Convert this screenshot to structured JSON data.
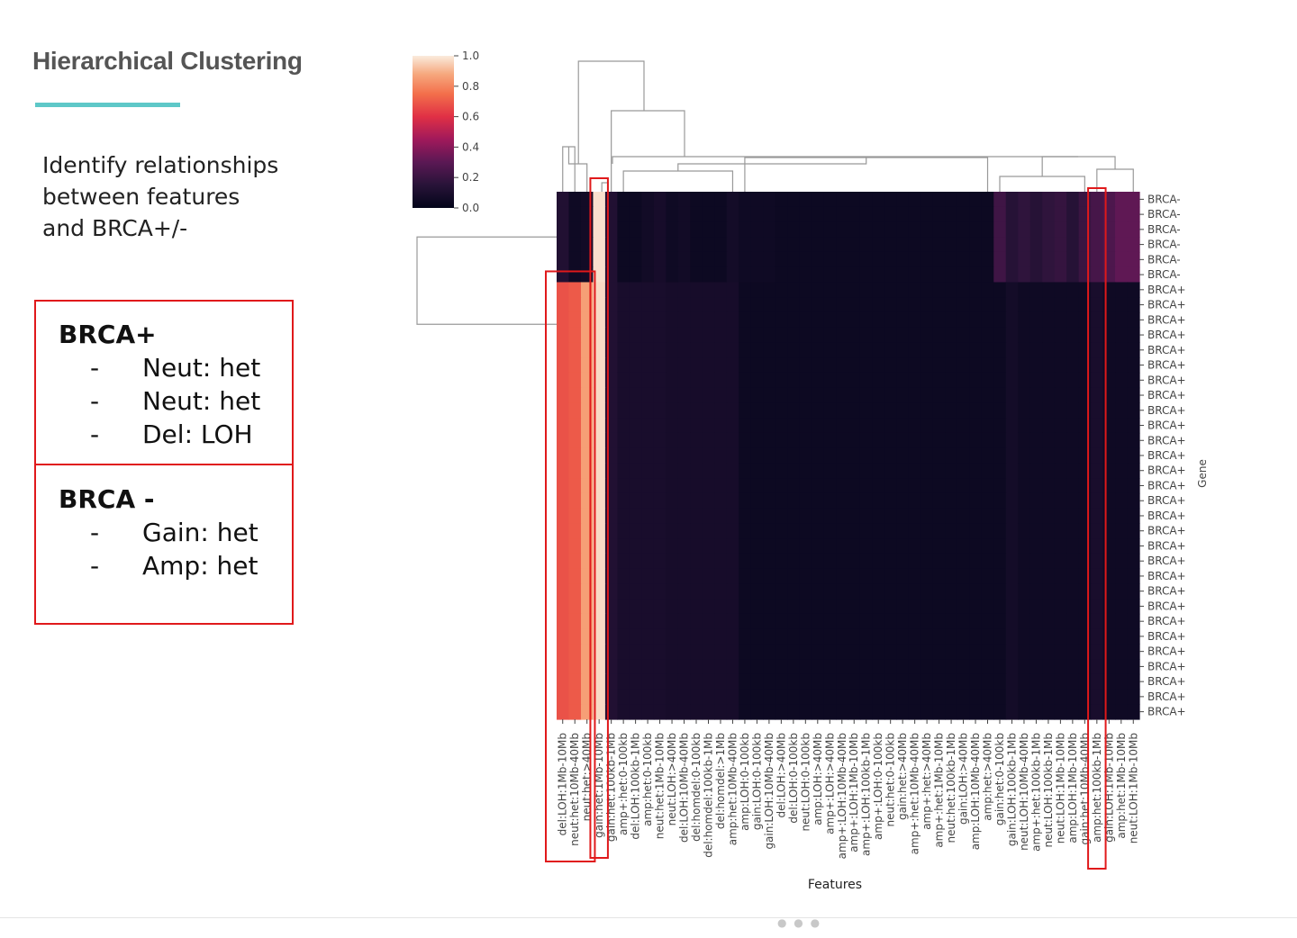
{
  "slide": {
    "title": "Hierarchical Clustering",
    "accent_color": "#5ec8c8",
    "intro_lines": [
      "Identify relationships",
      "between features",
      "and BRCA+/-"
    ]
  },
  "summary_box": {
    "border_color": "#e0191b",
    "groups": [
      {
        "heading": "BRCA+",
        "items": [
          {
            "dash": "-",
            "text": "Neut: het"
          },
          {
            "dash": "-",
            "text": "Neut: het"
          },
          {
            "dash": "-",
            "text": "Del: LOH"
          }
        ]
      },
      {
        "heading": "BRCA -",
        "items": [
          {
            "dash": "-",
            "text": "Gain: het"
          },
          {
            "dash": "-",
            "text": "Amp: het"
          }
        ]
      }
    ]
  },
  "chart_data": {
    "type": "heatmap",
    "xlabel": "Features",
    "ylabel": "Gene",
    "colorbar": {
      "ticks": [
        "1.0",
        "0.8",
        "0.6",
        "0.4",
        "0.2",
        "0.0"
      ],
      "range": [
        0,
        1
      ]
    },
    "x": [
      "del:LOH:1Mb-10Mb",
      "neut:het:10Mb-40Mb",
      "neut:het:>40Mb",
      "gain:het:1Mb-10Mb",
      "gain:het:100kb-1Mb",
      "amp+:het:0-100kb",
      "del:LOH:100kb-1Mb",
      "amp:het:0-100kb",
      "neut:het:1Mb-10Mb",
      "neut:LOH:>40Mb",
      "del:LOH:10Mb-40Mb",
      "del:homdel:0-100kb",
      "del:homdel:100kb-1Mb",
      "del:homdel:>1Mb",
      "amp:het:10Mb-40Mb",
      "amp:LOH:0-100kb",
      "gain:LOH:0-100kb",
      "gain:LOH:10Mb-40Mb",
      "del:LOH:>40Mb",
      "del:LOH:0-100kb",
      "neut:LOH:0-100kb",
      "amp:LOH:>40Mb",
      "amp+:LOH:>40Mb",
      "amp+:LOH:10Mb-40Mb",
      "amp+:LOH:1Mb-10Mb",
      "amp+:LOH:100kb-1Mb",
      "amp+:LOH:0-100kb",
      "neut:het:0-100kb",
      "gain:het:>40Mb",
      "amp+:het:10Mb-40Mb",
      "amp+:het:>40Mb",
      "amp+:het:1Mb-10Mb",
      "neut:het:100kb-1Mb",
      "gain:LOH:>40Mb",
      "amp:LOH:10Mb-40Mb",
      "amp:het:>40Mb",
      "gain:het:0-100kb",
      "gain:LOH:100kb-1Mb",
      "neut:LOH:10Mb-40Mb",
      "amp+:het:100kb-1Mb",
      "neut:LOH:100kb-1Mb",
      "neut:LOH:1Mb-10Mb",
      "amp:LOH:1Mb-10Mb",
      "gain:het:10Mb-40Mb",
      "amp:het:100kb-1Mb",
      "gain:LOH:1Mb-10Mb",
      "amp:het:1Mb-10Mb",
      "neut:LOH:1Mb-10Mb"
    ],
    "y": [
      "BRCA-",
      "BRCA-",
      "BRCA-",
      "BRCA-",
      "BRCA-",
      "BRCA-",
      "BRCA+",
      "BRCA+",
      "BRCA+",
      "BRCA+",
      "BRCA+",
      "BRCA+",
      "BRCA+",
      "BRCA+",
      "BRCA+",
      "BRCA+",
      "BRCA+",
      "BRCA+",
      "BRCA+",
      "BRCA+",
      "BRCA+",
      "BRCA+",
      "BRCA+",
      "BRCA+",
      "BRCA+",
      "BRCA+",
      "BRCA+",
      "BRCA+",
      "BRCA+",
      "BRCA+",
      "BRCA+",
      "BRCA+",
      "BRCA+",
      "BRCA+",
      "BRCA+"
    ],
    "row_groups": [
      {
        "label": "BRCA-",
        "count": 6
      },
      {
        "label": "BRCA+",
        "count": 29
      }
    ],
    "values_brca_minus": [
      0.12,
      0.05,
      0.06,
      0.98,
      0.12,
      0.04,
      0.04,
      0.06,
      0.08,
      0.05,
      0.06,
      0.04,
      0.04,
      0.04,
      0.07,
      0.05,
      0.05,
      0.05,
      0.04,
      0.04,
      0.04,
      0.04,
      0.04,
      0.04,
      0.04,
      0.04,
      0.04,
      0.04,
      0.04,
      0.04,
      0.04,
      0.04,
      0.04,
      0.04,
      0.04,
      0.04,
      0.22,
      0.14,
      0.17,
      0.14,
      0.17,
      0.19,
      0.14,
      0.2,
      0.24,
      0.26,
      0.31,
      0.31
    ],
    "values_brca_plus": [
      0.68,
      0.7,
      0.86,
      0.97,
      0.12,
      0.09,
      0.09,
      0.09,
      0.09,
      0.08,
      0.08,
      0.08,
      0.08,
      0.08,
      0.08,
      0.04,
      0.04,
      0.04,
      0.04,
      0.04,
      0.04,
      0.04,
      0.04,
      0.04,
      0.04,
      0.04,
      0.04,
      0.04,
      0.04,
      0.04,
      0.04,
      0.04,
      0.04,
      0.04,
      0.04,
      0.04,
      0.04,
      0.07,
      0.05,
      0.05,
      0.05,
      0.05,
      0.05,
      0.05,
      0.09,
      0.05,
      0.05,
      0.05
    ],
    "highlight_columns": [
      {
        "from": "del:LOH:1Mb-10Mb",
        "to": "gain:het:1Mb-10Mb",
        "span": "BRCA+ rows"
      },
      {
        "from": "gain:het:1Mb-10Mb",
        "to": "gain:het:1Mb-10Mb",
        "span": "all rows"
      },
      {
        "from": "amp:het:100kb-1Mb",
        "to": "amp:het:100kb-1Mb",
        "span": "all rows"
      }
    ],
    "highlight_color": "#e0191b"
  }
}
